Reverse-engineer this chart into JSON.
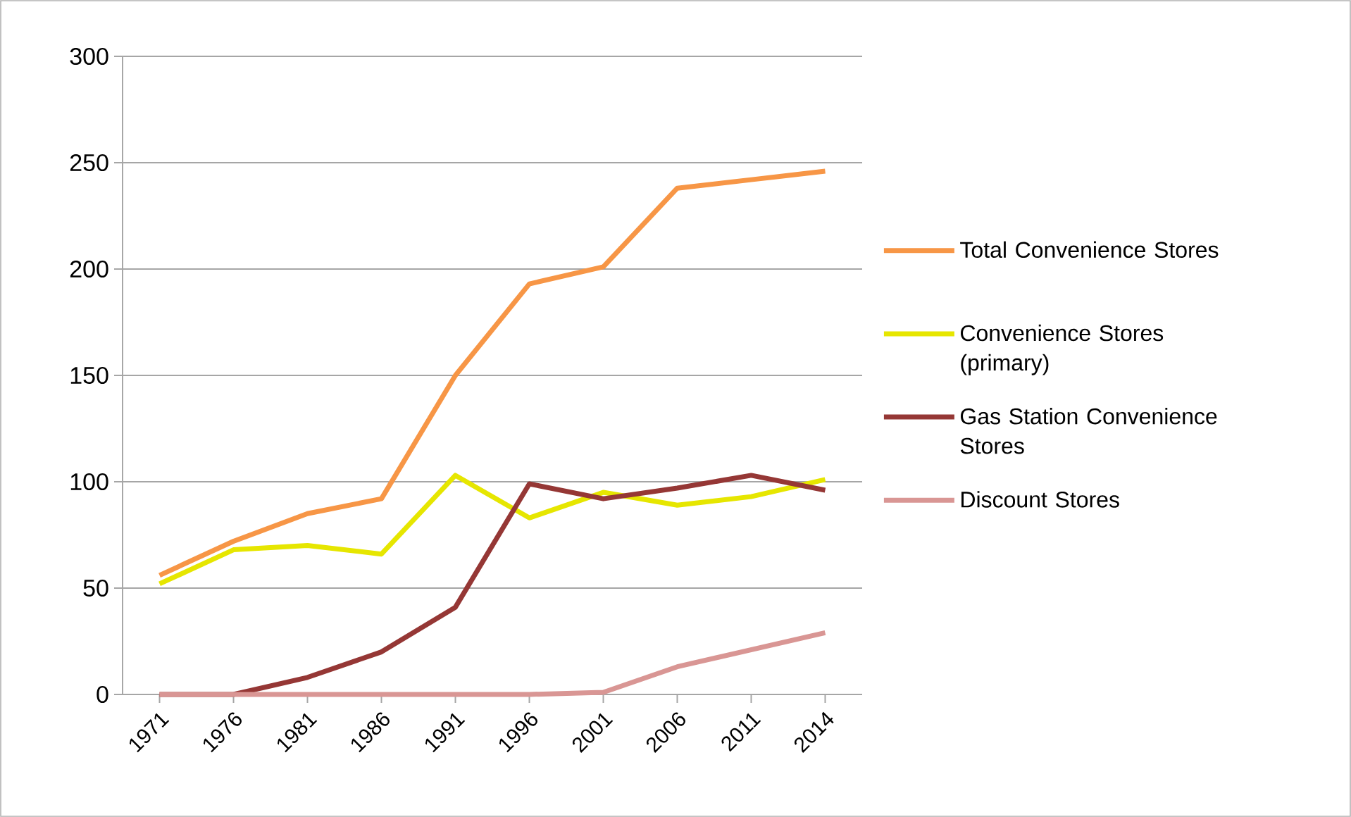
{
  "chart_data": {
    "type": "line",
    "categories": [
      "1971",
      "1976",
      "1981",
      "1986",
      "1991",
      "1996",
      "2001",
      "2006",
      "2011",
      "2014"
    ],
    "series": [
      {
        "name": "Total Convenience Stores",
        "color": "#f79646",
        "values": [
          56,
          72,
          85,
          92,
          150,
          193,
          201,
          238,
          242,
          246
        ]
      },
      {
        "name": "Convenience Stores (primary)",
        "color": "#e6e600",
        "values": [
          52,
          68,
          70,
          66,
          103,
          83,
          95,
          89,
          93,
          101
        ]
      },
      {
        "name": "Gas Station Convenience Stores",
        "color": "#953735",
        "values": [
          0,
          0,
          8,
          20,
          41,
          99,
          92,
          97,
          103,
          96
        ]
      },
      {
        "name": "Discount Stores",
        "color": "#d99694",
        "values": [
          0,
          0,
          0,
          0,
          0,
          0,
          1,
          13,
          21,
          29
        ]
      }
    ],
    "ylim": [
      0,
      300
    ],
    "yticks": [
      0,
      50,
      100,
      150,
      200,
      250,
      300
    ],
    "grid": "y",
    "legend": "right",
    "marker": "none",
    "line_style": "solid"
  }
}
